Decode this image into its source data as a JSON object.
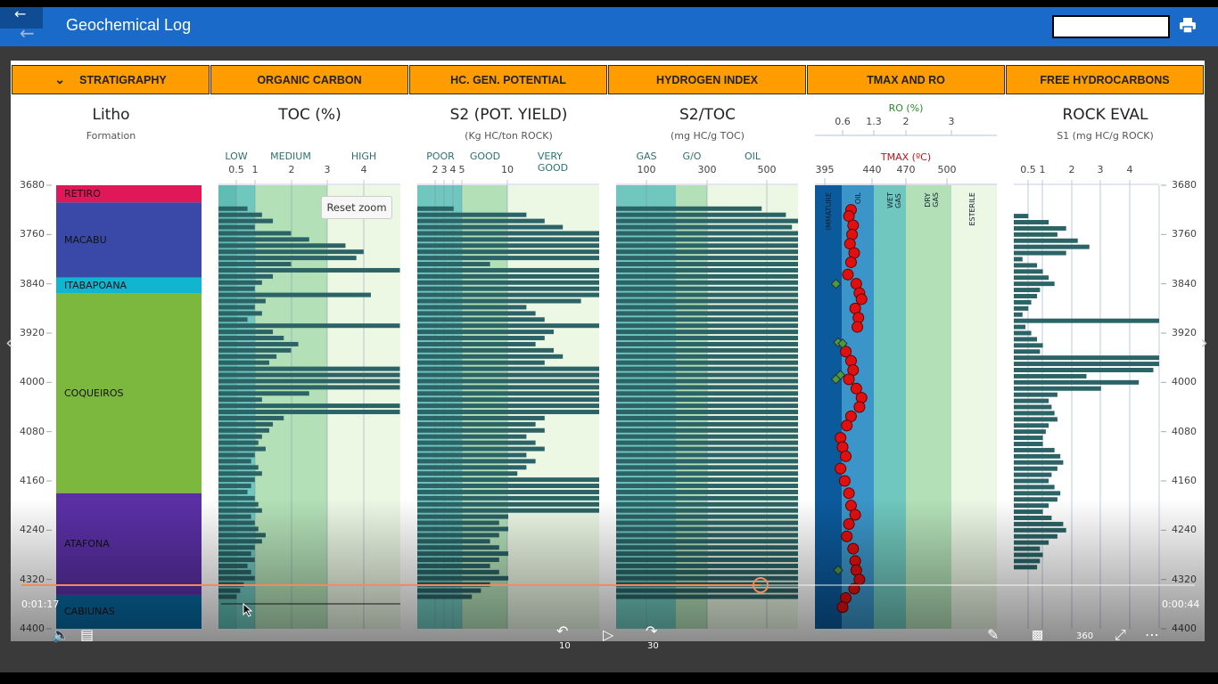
{
  "app": {
    "title": "Geochemical Log"
  },
  "headers": [
    "STRATIGRAPHY",
    "ORGANIC CARBON",
    "HC. GEN. POTENTIAL",
    "HYDROGEN INDEX",
    "TMAX AND RO",
    "FREE HYDROCARBONS"
  ],
  "columns": {
    "litho": {
      "title": "Litho",
      "subtitle": "Formation"
    },
    "toc": {
      "title": "TOC (%)",
      "zones": [
        "LOW",
        "MEDIUM",
        "HIGH"
      ],
      "ticks": [
        "0.5",
        "1",
        "2",
        "3",
        "4"
      ]
    },
    "s2": {
      "title": "S2 (POT. YIELD)",
      "subtitle": "(Kg HC/ton ROCK)",
      "zones": [
        "POOR",
        "GOOD",
        "VERY GOOD"
      ],
      "ticks": [
        "2",
        "3",
        "4",
        "5",
        "10"
      ]
    },
    "hi": {
      "title": "S2/TOC",
      "subtitle": "(mg HC/g TOC)",
      "zones": [
        "GAS",
        "G/O",
        "OIL"
      ],
      "ticks": [
        "100",
        "300",
        "500"
      ]
    },
    "tmax": {
      "ro_title": "RO (%)",
      "ro_ticks": [
        "0.6",
        "1.3",
        "2",
        "3"
      ],
      "tmax_title": "TMAX (ºC)",
      "tmax_ticks": [
        "395",
        "440",
        "470",
        "500"
      ],
      "zones": [
        "IMMATURE",
        "OIL",
        "WET GAS",
        "DRY GAS",
        "ESTERILE"
      ]
    },
    "s1": {
      "title": "ROCK EVAL",
      "subtitle": "S1 (mg HC/g ROCK)",
      "ticks": [
        "0.5",
        "1",
        "2",
        "3",
        "4"
      ]
    }
  },
  "depth_ticks": [
    "3680",
    "3760",
    "3840",
    "3920",
    "4000",
    "4080",
    "4160",
    "4240",
    "4320",
    "4400"
  ],
  "formations": [
    {
      "name": "RETIRO",
      "top": 3680,
      "base": 3708,
      "color": "#e0185a"
    },
    {
      "name": "MACABU",
      "top": 3708,
      "base": 3830,
      "color": "#3a48a8"
    },
    {
      "name": "ITABAPOANA",
      "top": 3830,
      "base": 3856,
      "color": "#12b5d0"
    },
    {
      "name": "COQUEIROS",
      "top": 3856,
      "base": 4180,
      "color": "#7cb73e"
    },
    {
      "name": "ATAFONA",
      "top": 4180,
      "base": 4345,
      "color": "#5b30a6"
    },
    {
      "name": "CABIUNAS",
      "top": 4345,
      "base": 4400,
      "color": "#086aa3"
    }
  ],
  "reset_zoom": "Reset zoom",
  "chart_data": {
    "type": "bar",
    "depth_range": [
      3680,
      4400
    ],
    "depth_start": 3718,
    "depth_step": 10,
    "toc": [
      0.8,
      1.2,
      1.5,
      1.0,
      2.0,
      2.5,
      3.5,
      4.0,
      3.8,
      2.0,
      5.0,
      1.5,
      1.2,
      1.0,
      4.2,
      1.3,
      1.0,
      1.2,
      0.8,
      5.0,
      1.5,
      1.8,
      2.2,
      2.0,
      1.6,
      1.4,
      5.0,
      5.0,
      5.0,
      5.0,
      2.5,
      1.2,
      5.0,
      5.0,
      1.8,
      1.5,
      1.4,
      1.2,
      1.1,
      1.3,
      1.0,
      0.9,
      1.1,
      1.2,
      1.0,
      0.9,
      0.8,
      1.0,
      1.1,
      1.2,
      0.9,
      1.0,
      1.1,
      1.3,
      1.2,
      1.0,
      0.9,
      1.0,
      0.8,
      0.9,
      1.0,
      0.7,
      0.6,
      0.5
    ],
    "s2": [
      4,
      12,
      14,
      16,
      20,
      20,
      20,
      20,
      20,
      8,
      20,
      20,
      20,
      20,
      20,
      18,
      12,
      13,
      14,
      20,
      15,
      14,
      13,
      15,
      16,
      14,
      20,
      20,
      20,
      20,
      20,
      20,
      20,
      20,
      14,
      13,
      14,
      12,
      13,
      14,
      12,
      13,
      12,
      11,
      20,
      20,
      20,
      20,
      20,
      20,
      10,
      9,
      10,
      9,
      8,
      9,
      10,
      9,
      8,
      9,
      10,
      8,
      7,
      6
    ],
    "hi": [
      480,
      560,
      600,
      580,
      600,
      600,
      600,
      600,
      600,
      600,
      600,
      600,
      600,
      600,
      600,
      600,
      600,
      600,
      600,
      600,
      600,
      600,
      600,
      600,
      600,
      600,
      600,
      600,
      600,
      600,
      600,
      600,
      600,
      600,
      600,
      600,
      600,
      600,
      600,
      600,
      600,
      600,
      600,
      600,
      600,
      600,
      600,
      600,
      600,
      600,
      600,
      600,
      600,
      600,
      600,
      600,
      600,
      600,
      600,
      600,
      600,
      600,
      600,
      600
    ],
    "s1": [
      0.5,
      1.2,
      1.8,
      1.5,
      2.2,
      2.6,
      1.8,
      0.3,
      0.8,
      1.0,
      1.2,
      1.4,
      0.9,
      0.8,
      0.6,
      0.5,
      0.3,
      5.0,
      0.4,
      0.6,
      0.8,
      1.0,
      0.9,
      5.0,
      5.0,
      4.8,
      2.5,
      4.3,
      3.0,
      1.5,
      1.2,
      1.3,
      1.4,
      1.5,
      1.2,
      1.1,
      1.0,
      1.0,
      1.4,
      1.6,
      1.7,
      1.5,
      1.3,
      1.2,
      1.4,
      1.6,
      1.5,
      1.2,
      1.0,
      1.3,
      1.7,
      1.8,
      1.5,
      1.2,
      0.9,
      1.0,
      0.9,
      0.8
    ],
    "s1_depth_start": 3730,
    "tmax_points": [
      [
        3720,
        420
      ],
      [
        3730,
        418
      ],
      [
        3745,
        422
      ],
      [
        3760,
        421
      ],
      [
        3775,
        419
      ],
      [
        3790,
        423
      ],
      [
        3805,
        420
      ],
      [
        3825,
        417
      ],
      [
        3840,
        425
      ],
      [
        3855,
        428
      ],
      [
        3865,
        430
      ],
      [
        3880,
        424
      ],
      [
        3895,
        427
      ],
      [
        3910,
        426
      ],
      [
        3950,
        415
      ],
      [
        3965,
        420
      ],
      [
        3980,
        422
      ],
      [
        3995,
        418
      ],
      [
        4010,
        425
      ],
      [
        4025,
        430
      ],
      [
        4040,
        428
      ],
      [
        4055,
        420
      ],
      [
        4070,
        416
      ],
      [
        4090,
        410
      ],
      [
        4105,
        412
      ],
      [
        4120,
        415
      ],
      [
        4140,
        410
      ],
      [
        4160,
        414
      ],
      [
        4180,
        418
      ],
      [
        4200,
        420
      ],
      [
        4215,
        424
      ],
      [
        4230,
        418
      ],
      [
        4250,
        416
      ],
      [
        4270,
        422
      ],
      [
        4290,
        424
      ],
      [
        4305,
        425
      ],
      [
        4320,
        428
      ],
      [
        4335,
        423
      ],
      [
        4350,
        415
      ],
      [
        4365,
        412
      ]
    ],
    "ro_points": [
      [
        3840,
        0.45
      ],
      [
        3935,
        0.5
      ],
      [
        3937,
        0.6
      ],
      [
        3988,
        0.55
      ],
      [
        3995,
        0.45
      ],
      [
        4305,
        0.5
      ]
    ]
  },
  "player": {
    "elapsed": "0:01:17",
    "remaining": "0:00:44",
    "progress": 0.63,
    "rewind": "10",
    "forward": "30",
    "vr": "360"
  },
  "colors": {
    "header": "#ff9c00",
    "appbar": "#1a6bc9",
    "bar": "#2b6366",
    "seek": "#f4895a"
  }
}
